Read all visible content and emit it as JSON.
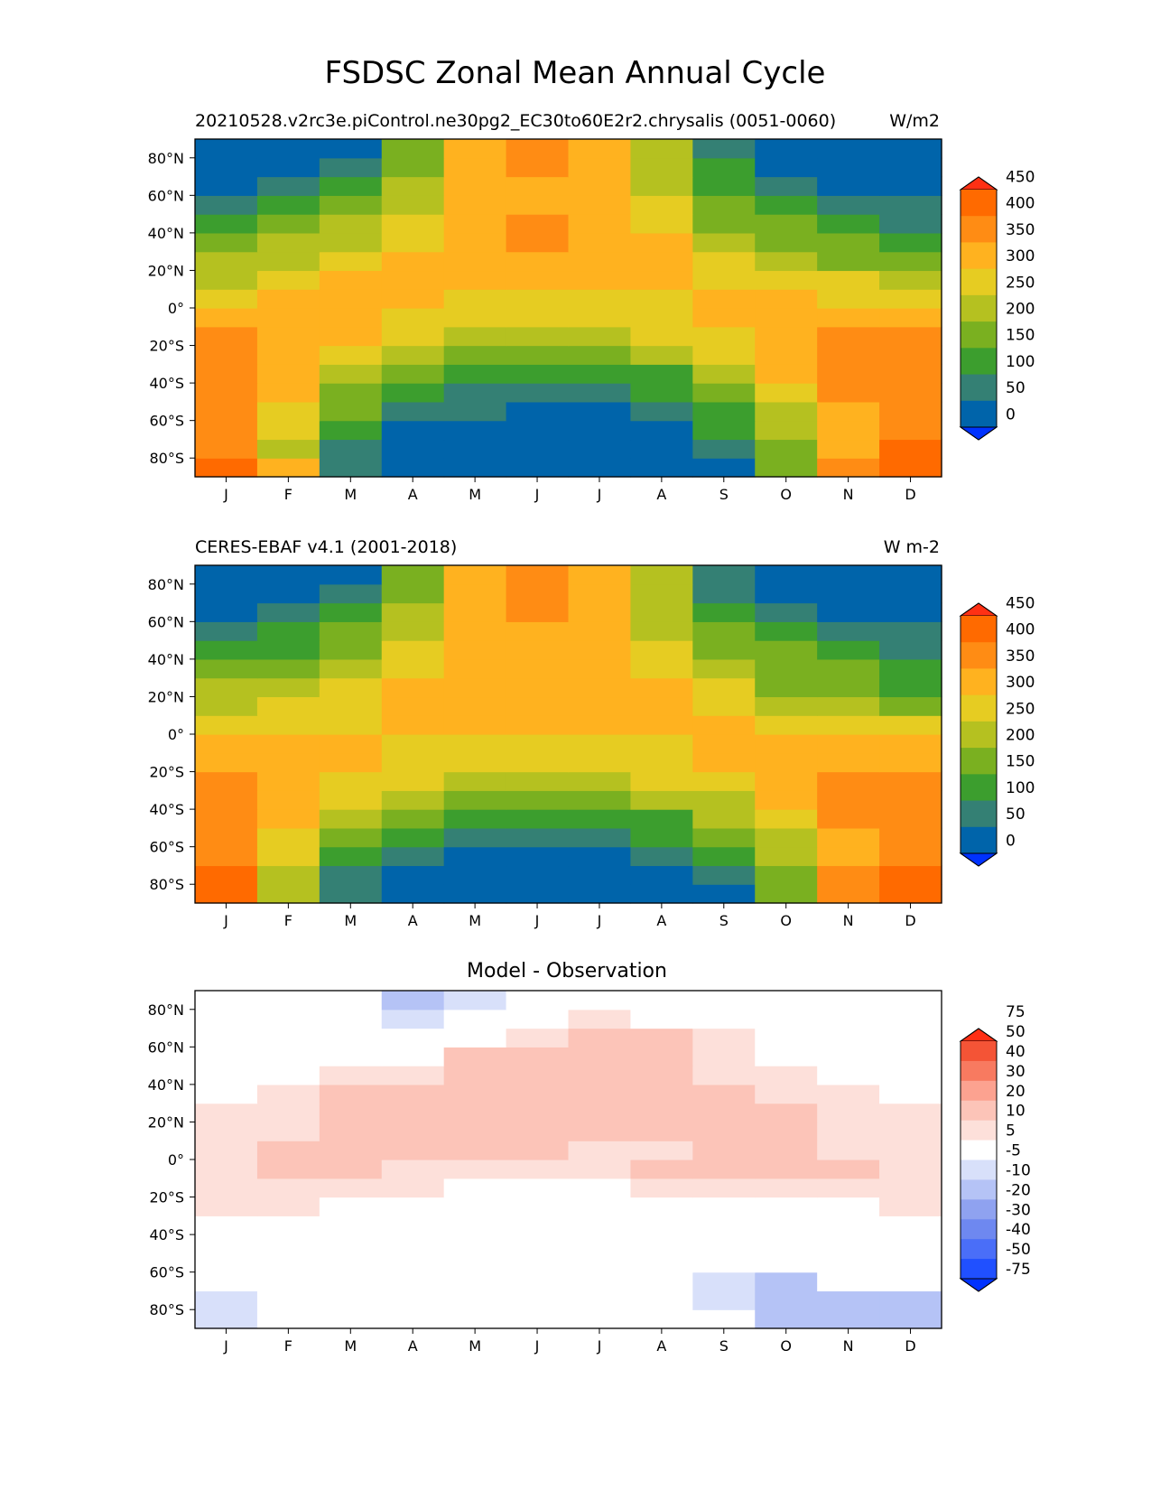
{
  "figure": {
    "title": "FSDSC Zonal Mean Annual Cycle"
  },
  "colors": {
    "field": [
      "#0032ff",
      "#0064aa",
      "#348074",
      "#3c9e2e",
      "#7ab020",
      "#b5c120",
      "#e6cc22",
      "#ffb21f",
      "#ff8c14",
      "#ff6a00",
      "#ff3014"
    ],
    "diff": [
      "#0032ff",
      "#2050ff",
      "#4a6ef8",
      "#6e88f0",
      "#8fa2f0",
      "#b5c3f6",
      "#d8e0fa",
      "#ffffff",
      "#fde0da",
      "#fcc4b8",
      "#fca290",
      "#f87a60",
      "#f45436",
      "#ff2e14"
    ]
  },
  "colorbars": {
    "field_ticks": [
      "0",
      "50",
      "100",
      "150",
      "200",
      "250",
      "300",
      "350",
      "400",
      "450"
    ],
    "diff_ticks": [
      "-75",
      "-50",
      "-40",
      "-30",
      "-20",
      "-10",
      "-5",
      "5",
      "10",
      "20",
      "30",
      "40",
      "50",
      "75"
    ]
  },
  "chart_data": [
    {
      "type": "heatmap",
      "title": "",
      "left_title": "20210528.v2rc3e.piControl.ne30pg2_EC30to60E2r2.chrysalis (0051-0060)",
      "right_title": "W/m2",
      "x": [
        "J",
        "F",
        "M",
        "A",
        "M",
        "J",
        "J",
        "A",
        "S",
        "O",
        "N",
        "D"
      ],
      "y_ticks": [
        "80°N",
        "60°N",
        "40°N",
        "20°N",
        "0°",
        "20°S",
        "40°S",
        "60°S",
        "80°S"
      ],
      "y_range": [
        -90,
        90
      ],
      "lat_bands": [
        [
          -90,
          -80
        ],
        [
          -80,
          -70
        ],
        [
          -70,
          -60
        ],
        [
          -60,
          -50
        ],
        [
          -50,
          -40
        ],
        [
          -40,
          -30
        ],
        [
          -30,
          -20
        ],
        [
          -20,
          -10
        ],
        [
          -10,
          0
        ],
        [
          0,
          10
        ],
        [
          10,
          20
        ],
        [
          20,
          30
        ],
        [
          30,
          40
        ],
        [
          40,
          50
        ],
        [
          50,
          60
        ],
        [
          60,
          70
        ],
        [
          70,
          80
        ],
        [
          80,
          90
        ]
      ],
      "z": [
        [
          400,
          320,
          95,
          10,
          10,
          10,
          10,
          10,
          10,
          170,
          360,
          420
        ],
        [
          370,
          230,
          95,
          10,
          10,
          10,
          10,
          10,
          90,
          170,
          330,
          400
        ],
        [
          370,
          270,
          130,
          10,
          10,
          10,
          10,
          10,
          110,
          220,
          330,
          370
        ],
        [
          370,
          270,
          160,
          80,
          50,
          10,
          10,
          80,
          130,
          220,
          330,
          370
        ],
        [
          370,
          320,
          170,
          120,
          90,
          80,
          75,
          120,
          170,
          270,
          370,
          370
        ],
        [
          370,
          320,
          220,
          160,
          120,
          110,
          110,
          140,
          230,
          320,
          370,
          370
        ],
        [
          370,
          320,
          270,
          220,
          170,
          160,
          160,
          200,
          270,
          320,
          370,
          370
        ],
        [
          370,
          320,
          320,
          270,
          220,
          210,
          210,
          250,
          290,
          330,
          370,
          370
        ],
        [
          330,
          320,
          320,
          290,
          270,
          260,
          260,
          280,
          320,
          330,
          330,
          330
        ],
        [
          270,
          320,
          320,
          320,
          290,
          280,
          280,
          290,
          320,
          320,
          290,
          290
        ],
        [
          230,
          270,
          320,
          320,
          320,
          310,
          300,
          320,
          290,
          290,
          270,
          230
        ],
        [
          200,
          230,
          290,
          320,
          320,
          320,
          320,
          320,
          290,
          230,
          190,
          170
        ],
        [
          170,
          210,
          240,
          280,
          320,
          360,
          320,
          320,
          240,
          190,
          170,
          140
        ],
        [
          120,
          160,
          200,
          290,
          320,
          360,
          320,
          290,
          180,
          150,
          130,
          95
        ],
        [
          75,
          130,
          160,
          240,
          320,
          320,
          320,
          290,
          170,
          130,
          80,
          80
        ],
        [
          20,
          70,
          120,
          240,
          320,
          320,
          320,
          240,
          130,
          80,
          20,
          20
        ],
        [
          20,
          20,
          80,
          170,
          320,
          350,
          320,
          230,
          120,
          20,
          20,
          20
        ],
        [
          20,
          20,
          20,
          170,
          320,
          350,
          320,
          230,
          80,
          20,
          20,
          20
        ]
      ]
    },
    {
      "type": "heatmap",
      "title": "",
      "left_title": "CERES-EBAF v4.1 (2001-2018)",
      "right_title": "W m-2",
      "x": [
        "J",
        "F",
        "M",
        "A",
        "M",
        "J",
        "J",
        "A",
        "S",
        "O",
        "N",
        "D"
      ],
      "y_ticks": [
        "80°N",
        "60°N",
        "40°N",
        "20°N",
        "0°",
        "20°S",
        "40°S",
        "60°S",
        "80°S"
      ],
      "y_range": [
        -90,
        90
      ],
      "lat_bands": [
        [
          -90,
          -80
        ],
        [
          -80,
          -70
        ],
        [
          -70,
          -60
        ],
        [
          -60,
          -50
        ],
        [
          -50,
          -40
        ],
        [
          -40,
          -30
        ],
        [
          -30,
          -20
        ],
        [
          -20,
          -10
        ],
        [
          -10,
          0
        ],
        [
          0,
          10
        ],
        [
          10,
          20
        ],
        [
          20,
          30
        ],
        [
          30,
          40
        ],
        [
          40,
          50
        ],
        [
          50,
          60
        ],
        [
          60,
          70
        ],
        [
          70,
          80
        ],
        [
          80,
          90
        ]
      ],
      "z": [
        [
          410,
          230,
          95,
          10,
          10,
          10,
          10,
          10,
          10,
          170,
          370,
          440
        ],
        [
          410,
          230,
          95,
          10,
          10,
          10,
          10,
          10,
          90,
          170,
          370,
          420
        ],
        [
          370,
          270,
          130,
          80,
          10,
          10,
          10,
          80,
          120,
          220,
          340,
          370
        ],
        [
          370,
          270,
          170,
          120,
          90,
          80,
          80,
          130,
          160,
          220,
          340,
          370
        ],
        [
          370,
          320,
          210,
          160,
          120,
          110,
          110,
          140,
          220,
          280,
          370,
          370
        ],
        [
          370,
          320,
          270,
          220,
          170,
          160,
          150,
          200,
          240,
          320,
          370,
          370
        ],
        [
          370,
          320,
          270,
          270,
          220,
          210,
          210,
          250,
          280,
          320,
          370,
          370
        ],
        [
          330,
          320,
          320,
          290,
          270,
          270,
          270,
          290,
          300,
          320,
          320,
          320
        ],
        [
          300,
          320,
          300,
          290,
          290,
          280,
          280,
          290,
          300,
          300,
          300,
          300
        ],
        [
          280,
          280,
          280,
          320,
          300,
          300,
          300,
          300,
          300,
          280,
          270,
          260
        ],
        [
          230,
          250,
          280,
          320,
          330,
          330,
          330,
          330,
          290,
          230,
          200,
          180
        ],
        [
          200,
          220,
          260,
          310,
          330,
          330,
          330,
          320,
          270,
          190,
          170,
          140
        ],
        [
          150,
          180,
          220,
          290,
          330,
          330,
          330,
          290,
          230,
          180,
          150,
          120
        ],
        [
          110,
          140,
          180,
          290,
          330,
          330,
          330,
          290,
          190,
          150,
          110,
          80
        ],
        [
          60,
          100,
          150,
          240,
          330,
          330,
          330,
          240,
          160,
          100,
          60,
          60
        ],
        [
          30,
          60,
          110,
          210,
          330,
          350,
          330,
          220,
          120,
          60,
          30,
          30
        ],
        [
          30,
          30,
          80,
          180,
          330,
          380,
          330,
          200,
          90,
          30,
          30,
          30
        ],
        [
          30,
          30,
          30,
          170,
          330,
          380,
          330,
          200,
          60,
          30,
          30,
          30
        ]
      ]
    },
    {
      "type": "heatmap",
      "title": "Model - Observation",
      "left_title": "",
      "right_title": "",
      "x": [
        "J",
        "F",
        "M",
        "A",
        "M",
        "J",
        "J",
        "A",
        "S",
        "O",
        "N",
        "D"
      ],
      "y_ticks": [
        "80°N",
        "60°N",
        "40°N",
        "20°N",
        "0°",
        "20°S",
        "40°S",
        "60°S",
        "80°S"
      ],
      "y_range": [
        -90,
        90
      ],
      "lat_bands": [
        [
          -90,
          -80
        ],
        [
          -80,
          -70
        ],
        [
          -70,
          -60
        ],
        [
          -60,
          -50
        ],
        [
          -50,
          -40
        ],
        [
          -40,
          -30
        ],
        [
          -30,
          -20
        ],
        [
          -20,
          -10
        ],
        [
          -10,
          0
        ],
        [
          0,
          10
        ],
        [
          10,
          20
        ],
        [
          20,
          30
        ],
        [
          30,
          40
        ],
        [
          40,
          50
        ],
        [
          50,
          60
        ],
        [
          60,
          70
        ],
        [
          70,
          80
        ],
        [
          80,
          90
        ]
      ],
      "z": [
        [
          -7,
          0,
          0,
          0,
          0,
          0,
          0,
          0,
          0,
          -12,
          -12,
          -12
        ],
        [
          -7,
          0,
          0,
          0,
          0,
          0,
          0,
          0,
          -7,
          -12,
          -12,
          -12
        ],
        [
          0,
          0,
          0,
          0,
          0,
          0,
          0,
          0,
          -7,
          -12,
          0,
          0
        ],
        [
          0,
          0,
          0,
          0,
          0,
          0,
          0,
          0,
          0,
          0,
          0,
          0
        ],
        [
          0,
          0,
          0,
          0,
          0,
          0,
          0,
          0,
          0,
          0,
          0,
          0
        ],
        [
          0,
          0,
          0,
          0,
          0,
          0,
          0,
          0,
          0,
          0,
          0,
          0
        ],
        [
          7,
          7,
          0,
          0,
          0,
          0,
          0,
          0,
          0,
          0,
          0,
          7
        ],
        [
          7,
          7,
          7,
          7,
          0,
          0,
          0,
          7,
          7,
          7,
          7,
          7
        ],
        [
          7,
          15,
          15,
          7,
          7,
          7,
          7,
          15,
          15,
          15,
          15,
          7
        ],
        [
          7,
          15,
          15,
          15,
          15,
          15,
          7,
          7,
          15,
          15,
          7,
          7
        ],
        [
          7,
          7,
          15,
          15,
          15,
          15,
          15,
          15,
          15,
          15,
          7,
          7
        ],
        [
          7,
          7,
          15,
          15,
          15,
          15,
          15,
          15,
          15,
          15,
          7,
          7
        ],
        [
          0,
          7,
          15,
          15,
          15,
          15,
          15,
          15,
          15,
          7,
          7,
          0
        ],
        [
          0,
          0,
          7,
          7,
          15,
          15,
          15,
          15,
          7,
          7,
          0,
          0
        ],
        [
          0,
          0,
          0,
          0,
          15,
          15,
          15,
          15,
          7,
          0,
          0,
          0
        ],
        [
          0,
          0,
          0,
          0,
          0,
          7,
          15,
          15,
          7,
          0,
          0,
          0
        ],
        [
          0,
          0,
          0,
          -7,
          0,
          0,
          7,
          0,
          0,
          0,
          0,
          0
        ],
        [
          0,
          0,
          0,
          -12,
          -7,
          0,
          0,
          0,
          0,
          0,
          0,
          0
        ]
      ]
    }
  ]
}
